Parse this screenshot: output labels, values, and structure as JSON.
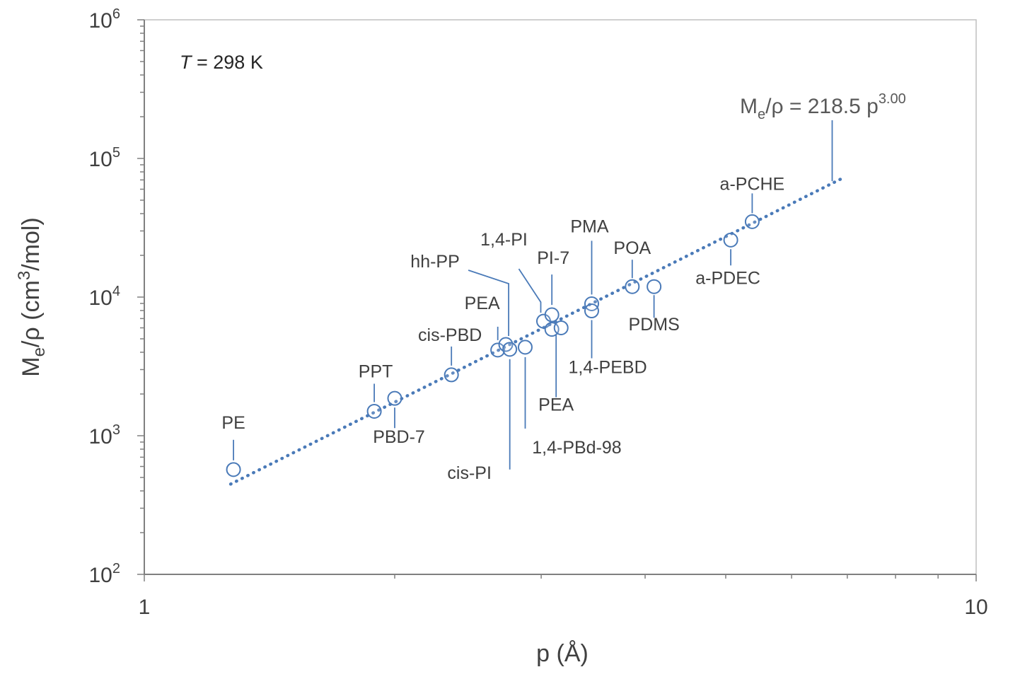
{
  "chart_data": {
    "type": "scatter",
    "xscale": "log",
    "yscale": "log",
    "xlim": [
      1,
      10
    ],
    "ylim": [
      100,
      1000000
    ],
    "x_ticks": [
      {
        "value": 1,
        "label": "1"
      },
      {
        "value": 10,
        "label": "10"
      }
    ],
    "y_ticks": [
      {
        "value": 100,
        "base": "10",
        "exp": "2"
      },
      {
        "value": 1000,
        "base": "10",
        "exp": "3"
      },
      {
        "value": 10000,
        "base": "10",
        "exp": "4"
      },
      {
        "value": 100000,
        "base": "10",
        "exp": "5"
      },
      {
        "value": 1000000,
        "base": "10",
        "exp": "6"
      }
    ],
    "xlabel": "p (Å)",
    "ylabel": {
      "a": "M",
      "sub": "e",
      "b": "/ρ  (cm",
      "sup": "3",
      "c": "/mol)"
    },
    "annotation": {
      "var": "T",
      "rest": " = 298 K"
    },
    "fit": {
      "coef": 218.5,
      "exponent": 3.0,
      "x_range": [
        1.27,
        6.9
      ],
      "label": {
        "a": "M",
        "sub": "e",
        "b": "/ρ  = 218.5 p",
        "sup": "3.00"
      },
      "color": "#4a7ab8"
    },
    "marker_color": "#4a7ab8",
    "points": [
      {
        "name": "PE",
        "x": 1.28,
        "y": 570
      },
      {
        "name": "PPT",
        "x": 1.89,
        "y": 1500
      },
      {
        "name": "PBD-7",
        "x": 2.0,
        "y": 1860
      },
      {
        "name": "cis-PBD",
        "x": 2.34,
        "y": 2750
      },
      {
        "name": "PEA",
        "x": 2.66,
        "y": 4150
      },
      {
        "name": "hh-PP",
        "x": 2.72,
        "y": 4550
      },
      {
        "name": "cis-PI",
        "x": 2.75,
        "y": 4200
      },
      {
        "name": "1,4-PBd-98",
        "x": 2.87,
        "y": 4350
      },
      {
        "name": "1,4-PI",
        "x": 3.02,
        "y": 6700
      },
      {
        "name": "PI-7",
        "x": 3.09,
        "y": 7450
      },
      {
        "name": "PEA",
        "x": 3.09,
        "y": 5850
      },
      {
        "name": "",
        "x": 3.17,
        "y": 6000
      },
      {
        "name": "PMA",
        "x": 3.45,
        "y": 8950
      },
      {
        "name": "1,4-PEBD",
        "x": 3.45,
        "y": 7950
      },
      {
        "name": "POA",
        "x": 3.86,
        "y": 11900
      },
      {
        "name": "PDMS",
        "x": 4.1,
        "y": 11900
      },
      {
        "name": "a-PDEC",
        "x": 5.07,
        "y": 25800
      },
      {
        "name": "a-PCHE",
        "x": 5.38,
        "y": 35000
      }
    ]
  }
}
